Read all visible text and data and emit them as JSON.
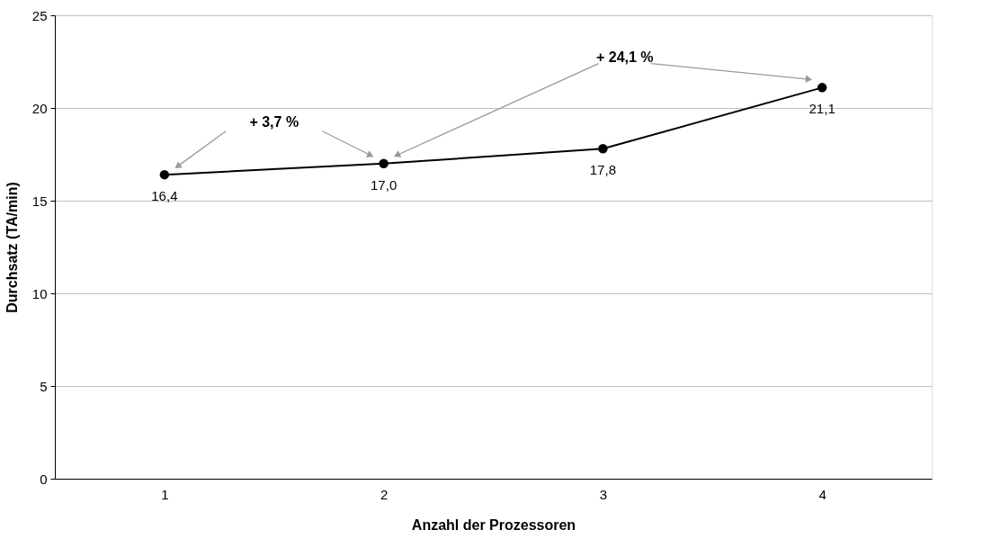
{
  "chart_data": {
    "type": "line",
    "xlabel": "Anzahl der Prozessoren",
    "ylabel": "Durchsatz (TA/min)",
    "categories": [
      "1",
      "2",
      "3",
      "4"
    ],
    "series": [
      {
        "color": "#000000",
        "values": [
          16.4,
          17.0,
          17.8,
          21.1
        ],
        "value_labels": [
          "16,4",
          "17,0",
          "17,8",
          "21,1"
        ]
      }
    ],
    "ylim": [
      0,
      25
    ],
    "yticks": [
      0,
      5,
      10,
      15,
      20,
      25
    ],
    "grid": "y",
    "marker": "circle",
    "line_style": "solid",
    "annotations": [
      "+ 3,7 %",
      "+ 24,1 %"
    ]
  }
}
